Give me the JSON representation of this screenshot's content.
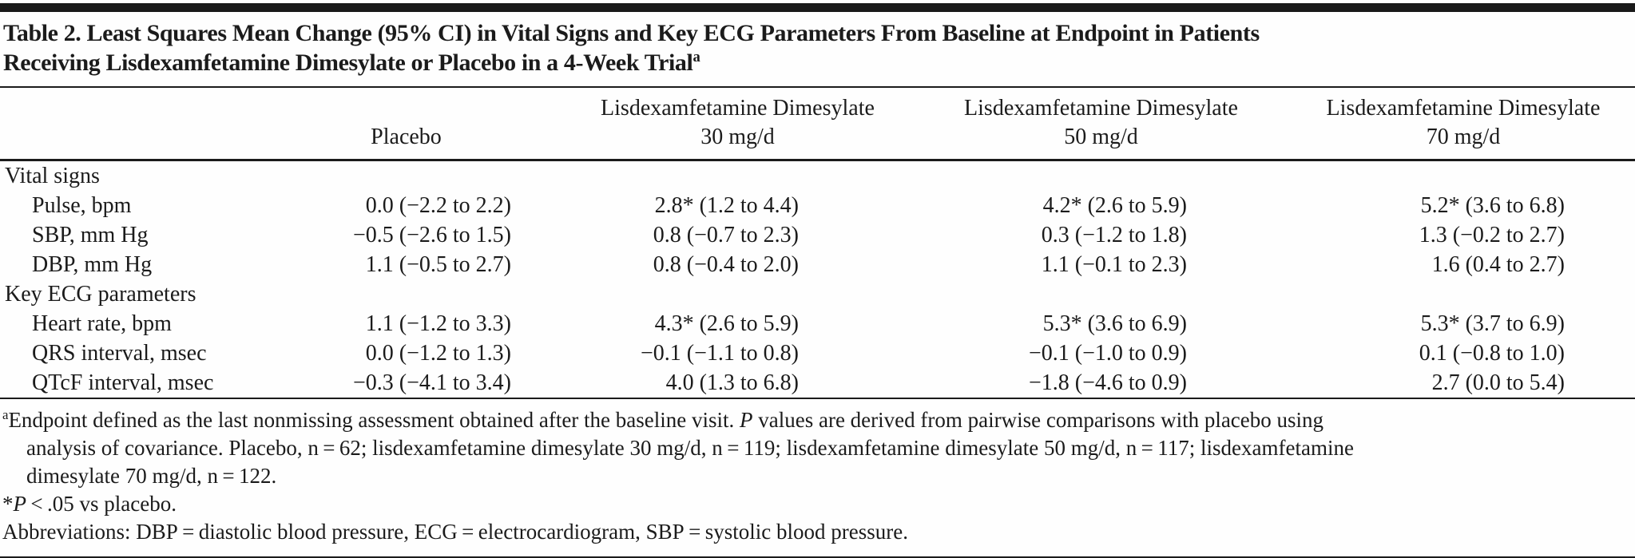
{
  "title": {
    "line1": "Table 2. Least Squares Mean Change (95% CI) in Vital Signs and Key ECG Parameters From Baseline at Endpoint in Patients",
    "line2": "Receiving Lisdexamfetamine Dimesylate or Placebo in a 4-Week Trial",
    "marker": "a"
  },
  "columns": [
    {
      "line1": "",
      "line2": "Placebo"
    },
    {
      "line1": "Lisdexamfetamine Dimesylate",
      "line2": "30 mg/d"
    },
    {
      "line1": "Lisdexamfetamine Dimesylate",
      "line2": "50 mg/d"
    },
    {
      "line1": "Lisdexamfetamine Dimesylate",
      "line2": "70 mg/d"
    }
  ],
  "sections": [
    {
      "header": "Vital signs",
      "rows": [
        {
          "label": "Pulse, bpm",
          "values": [
            "0.0 (−2.2 to 2.2)",
            "2.8* (1.2 to 4.4)",
            "4.2* (2.6 to 5.9)",
            "5.2* (3.6 to 6.8)"
          ]
        },
        {
          "label": "SBP, mm Hg",
          "values": [
            "−0.5 (−2.6 to 1.5)",
            "0.8 (−0.7 to 2.3)",
            "0.3 (−1.2 to 1.8)",
            "1.3 (−0.2 to 2.7)"
          ]
        },
        {
          "label": "DBP, mm Hg",
          "values": [
            "1.1 (−0.5 to 2.7)",
            "0.8 (−0.4 to 2.0)",
            "1.1 (−0.1 to 2.3)",
            "1.6 (0.4 to 2.7)"
          ]
        }
      ]
    },
    {
      "header": "Key ECG parameters",
      "rows": [
        {
          "label": "Heart rate, bpm",
          "values": [
            "1.1 (−1.2 to 3.3)",
            "4.3* (2.6 to 5.9)",
            "5.3* (3.6 to 6.9)",
            "5.3* (3.7 to 6.9)"
          ]
        },
        {
          "label": "QRS interval, msec",
          "values": [
            "0.0 (−1.2 to 1.3)",
            "−0.1 (−1.1 to 0.8)",
            "−0.1 (−1.0 to 0.9)",
            "0.1 (−0.8 to 1.0)"
          ]
        },
        {
          "label": "QTcF interval, msec",
          "values": [
            "−0.3 (−4.1 to 3.4)",
            "4.0 (1.3 to 6.8)",
            "−1.8 (−4.6 to 0.9)",
            "2.7 (0.0 to 5.4)"
          ]
        }
      ]
    }
  ],
  "footnotes": {
    "a": {
      "marker": "a",
      "line1_pre": "Endpoint defined as the last nonmissing assessment obtained after the baseline visit. ",
      "line1_italic": "P",
      "line1_post": " values are derived from pairwise comparisons with placebo using",
      "line2": "analysis of covariance. Placebo, n = 62; lisdexamfetamine dimesylate 30 mg/d, n = 119; lisdexamfetamine dimesylate 50 mg/d, n = 117; lisdexamfetamine",
      "line3": "dimesylate 70 mg/d, n = 122."
    },
    "significance": {
      "star": "*",
      "italic": "P",
      "rest": " < .05 vs placebo."
    },
    "abbreviations": "Abbreviations: DBP = diastolic blood pressure, ECG = electrocardiogram, SBP = systolic blood pressure."
  }
}
